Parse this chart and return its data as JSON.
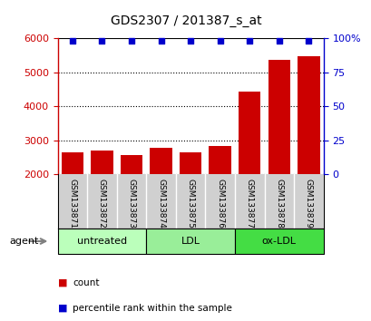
{
  "title": "GDS2307 / 201387_s_at",
  "samples": [
    "GSM133871",
    "GSM133872",
    "GSM133873",
    "GSM133874",
    "GSM133875",
    "GSM133876",
    "GSM133877",
    "GSM133878",
    "GSM133879"
  ],
  "counts": [
    2650,
    2700,
    2580,
    2780,
    2660,
    2850,
    4450,
    5380,
    5480
  ],
  "percentiles": [
    98,
    98,
    98,
    98,
    98,
    98,
    98,
    98,
    98
  ],
  "bar_color": "#cc0000",
  "dot_color": "#0000cc",
  "ylim_left": [
    2000,
    6000
  ],
  "yticks_left": [
    2000,
    3000,
    4000,
    5000,
    6000
  ],
  "ylim_right": [
    0,
    100
  ],
  "yticks_right": [
    0,
    25,
    50,
    75,
    100
  ],
  "yticklabels_right": [
    "0",
    "25",
    "50",
    "75",
    "100%"
  ],
  "groups": [
    {
      "label": "untreated",
      "indices": [
        0,
        1,
        2
      ],
      "color": "#bbffbb"
    },
    {
      "label": "LDL",
      "indices": [
        3,
        4,
        5
      ],
      "color": "#99ee99"
    },
    {
      "label": "ox-LDL",
      "indices": [
        6,
        7,
        8
      ],
      "color": "#44dd44"
    }
  ],
  "agent_label": "agent",
  "legend_count_label": "count",
  "legend_percentile_label": "percentile rank within the sample",
  "grid_style": "dotted",
  "grid_color": "#000000",
  "sample_bg": "#d0d0d0",
  "plot_bg": "#ffffff"
}
